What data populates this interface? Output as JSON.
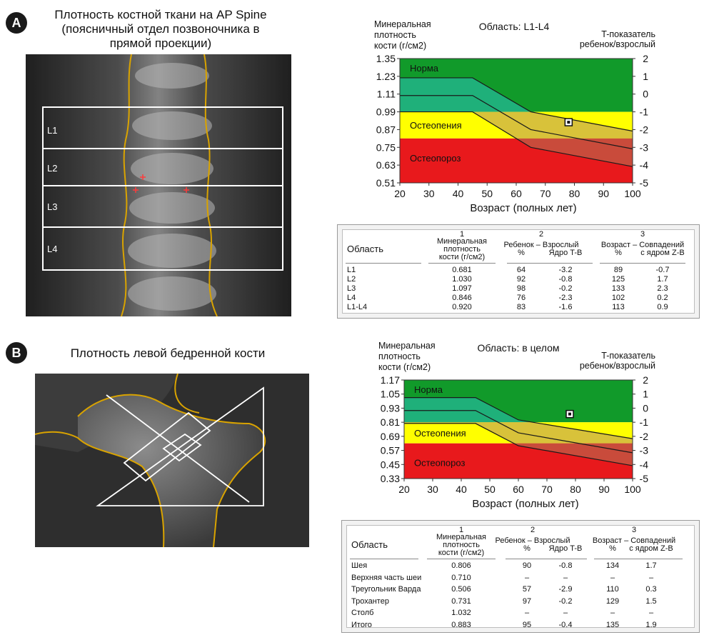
{
  "panelA": {
    "badge": "A",
    "image_title_lines": [
      "Плотность костной ткани на AP Spine",
      "(поясничный отдел позвоночника в",
      "прямой проекции)"
    ],
    "roi_labels": [
      "L1",
      "L2",
      "L3",
      "L4"
    ]
  },
  "panelB": {
    "badge": "B",
    "image_title_lines": [
      "Плотность левой бедренной кости"
    ]
  },
  "chart_data": [
    {
      "type": "area",
      "title": "Область: L1-L4",
      "ylabel_left": [
        "Минеральная",
        "плотность",
        "кости (г/см2)"
      ],
      "ylabel_right": [
        "T-показатель",
        "ребенок/взрослый"
      ],
      "xlabel": "Возраст (полных лет)",
      "xlim": [
        20,
        100
      ],
      "ylim": [
        0.51,
        1.35
      ],
      "x_ticks": [
        20,
        30,
        40,
        50,
        60,
        70,
        80,
        90,
        100
      ],
      "y_ticks": [
        "1.35",
        "1.23",
        "1.11",
        "0.99",
        "0.87",
        "0.75",
        "0.63",
        "0.51"
      ],
      "t_ticks": [
        "2",
        "1",
        "0",
        "-1",
        "-2",
        "-3",
        "-4",
        "-5"
      ],
      "zones": [
        {
          "name": "Норма",
          "from": 0.99,
          "to": 1.35,
          "color": "#119a2a"
        },
        {
          "name": "Остеопения",
          "from": 0.81,
          "to": 0.99,
          "color": "#ffff00"
        },
        {
          "name": "Остеопороз",
          "from": 0.51,
          "to": 0.81,
          "color": "#e8191c"
        }
      ],
      "reference_lines": [
        {
          "x": [
            20,
            45,
            65,
            100
          ],
          "y": [
            1.22,
            1.22,
            0.99,
            0.86
          ]
        },
        {
          "x": [
            20,
            45,
            65,
            100
          ],
          "y": [
            1.1,
            1.1,
            0.87,
            0.74
          ]
        },
        {
          "x": [
            20,
            45,
            65,
            100
          ],
          "y": [
            0.99,
            0.99,
            0.75,
            0.62
          ]
        }
      ],
      "patient": {
        "age": 78,
        "value": 0.92
      }
    },
    {
      "type": "area",
      "title": "Область: в целом",
      "ylabel_left": [
        "Минеральная",
        "плотность",
        "кости (г/см2)"
      ],
      "ylabel_right": [
        "T-показатель",
        "ребенок/взрослый"
      ],
      "xlabel": "Возраст (полных лет)",
      "xlim": [
        20,
        100
      ],
      "ylim": [
        0.33,
        1.17
      ],
      "x_ticks": [
        20,
        30,
        40,
        50,
        60,
        70,
        80,
        90,
        100
      ],
      "y_ticks": [
        "1.17",
        "1.05",
        "0.93",
        "0.81",
        "0.69",
        "0.57",
        "0.45",
        "0.33"
      ],
      "t_ticks": [
        "2",
        "1",
        "0",
        "-1",
        "-2",
        "-3",
        "-4",
        "-5"
      ],
      "zones": [
        {
          "name": "Норма",
          "from": 0.81,
          "to": 1.17,
          "color": "#119a2a"
        },
        {
          "name": "Остеопения",
          "from": 0.63,
          "to": 0.81,
          "color": "#ffff00"
        },
        {
          "name": "Остеопороз",
          "from": 0.33,
          "to": 0.63,
          "color": "#e8191c"
        }
      ],
      "reference_lines": [
        {
          "x": [
            20,
            45,
            60,
            100
          ],
          "y": [
            1.02,
            1.02,
            0.83,
            0.67
          ]
        },
        {
          "x": [
            20,
            45,
            60,
            100
          ],
          "y": [
            0.91,
            0.91,
            0.72,
            0.55
          ]
        },
        {
          "x": [
            20,
            45,
            60,
            100
          ],
          "y": [
            0.8,
            0.8,
            0.61,
            0.44
          ]
        }
      ],
      "patient": {
        "age": 78,
        "value": 0.88
      }
    },
    {
      "type": "table",
      "group_numbers": [
        "1",
        "2",
        "3"
      ],
      "headers": {
        "region": "Область",
        "bmd": [
          "Минеральная",
          "плотность",
          "кости (г/см2)"
        ],
        "g2": [
          "Ребенок – Взрослый",
          "%",
          "Ядро T-B"
        ],
        "g3": [
          "Возраст – Совпадений",
          "%",
          "с ядром Z-B"
        ]
      },
      "rows": [
        [
          "L1",
          "0.681",
          "64",
          "-3.2",
          "89",
          "-0.7"
        ],
        [
          "L2",
          "1.030",
          "92",
          "-0.8",
          "125",
          "1.7"
        ],
        [
          "L3",
          "1.097",
          "98",
          "-0.2",
          "133",
          "2.3"
        ],
        [
          "L4",
          "0.846",
          "76",
          "-2.3",
          "102",
          "0.2"
        ],
        [
          "L1-L4",
          "0.920",
          "83",
          "-1.6",
          "113",
          "0.9"
        ]
      ]
    },
    {
      "type": "table",
      "group_numbers": [
        "1",
        "2",
        "3"
      ],
      "headers": {
        "region": "Область",
        "bmd": [
          "Минеральная",
          "плотность",
          "кости (г/см2)"
        ],
        "g2": [
          "Ребенок – Взрослый",
          "%",
          "Ядро T-B"
        ],
        "g3": [
          "Возраст – Совпадений",
          "%",
          "с ядром Z-B"
        ]
      },
      "rows": [
        [
          "Шея",
          "0.806",
          "90",
          "-0.8",
          "134",
          "1.7"
        ],
        [
          "Верхняя часть шеи",
          "0.710",
          "–",
          "–",
          "–",
          "–"
        ],
        [
          "Треугольник Варда",
          "0.506",
          "57",
          "-2.9",
          "110",
          "0.3"
        ],
        [
          "Трохантер",
          "0.731",
          "97",
          "-0.2",
          "129",
          "1.5"
        ],
        [
          "Столб",
          "1.032",
          "–",
          "–",
          "–",
          "–"
        ],
        [
          "Итого",
          "0.883",
          "95",
          "-0.4",
          "135",
          "1.9"
        ]
      ]
    }
  ]
}
